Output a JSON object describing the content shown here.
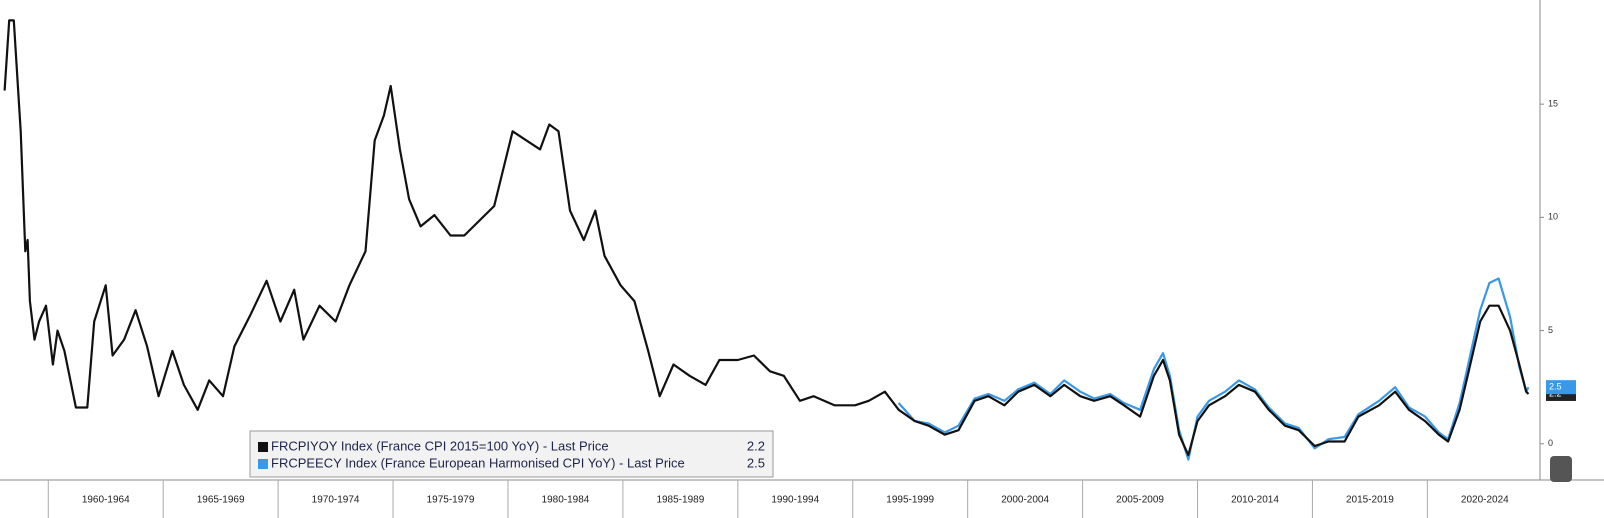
{
  "chart_data": {
    "type": "line",
    "x": [
      1958.1,
      1958.3,
      1958.5,
      1958.8,
      1959.0,
      1959.1,
      1959.2,
      1959.4,
      1959.6,
      1959.9,
      1960.2,
      1960.4,
      1960.7,
      1961.2,
      1961.7,
      1962.0,
      1962.5,
      1962.8,
      1963.3,
      1963.8,
      1964.3,
      1964.8,
      1965.4,
      1965.9,
      1966.5,
      1967.0,
      1967.6,
      1968.1,
      1968.8,
      1969.5,
      1970.1,
      1970.7,
      1971.1,
      1971.8,
      1972.5,
      1973.1,
      1973.8,
      1974.2,
      1974.6,
      1974.9,
      1975.3,
      1975.7,
      1976.2,
      1976.8,
      1977.5,
      1978.1,
      1978.8,
      1979.4,
      1980.2,
      1980.8,
      1981.4,
      1981.8,
      1982.2,
      1982.7,
      1983.3,
      1983.8,
      1984.2,
      1984.9,
      1985.5,
      1986.1,
      1986.6,
      1987.2,
      1987.9,
      1988.6,
      1989.2,
      1990.0,
      1990.7,
      1991.4,
      1992.0,
      1992.7,
      1993.3,
      1994.2,
      1995.1,
      1995.7,
      1996.4,
      1997.0,
      1997.7,
      1998.3,
      1999.0,
      1999.6,
      2000.3,
      2000.9,
      2001.6,
      2002.2,
      2002.9,
      2003.6,
      2004.2,
      2004.9,
      2005.5,
      2006.2,
      2006.8,
      2007.5,
      2008.1,
      2008.5,
      2008.8,
      2009.2,
      2009.6,
      2010.0,
      2010.5,
      2011.2,
      2011.8,
      2012.5,
      2013.1,
      2013.8,
      2014.4,
      2015.1,
      2015.7,
      2016.4,
      2017.0,
      2017.9,
      2018.6,
      2019.2,
      2019.9,
      2020.5,
      2020.9,
      2021.4,
      2021.8,
      2022.3,
      2022.7,
      2023.1,
      2023.6,
      2024.0,
      2024.3,
      2024.4
    ],
    "series": [
      {
        "name": "FRCPIYOY Index (France CPI 2015=100 YoY) - Last Price",
        "last_value": 2.2,
        "color": "#111111",
        "values": [
          15.6,
          18.7,
          18.7,
          13.8,
          8.5,
          9.0,
          6.3,
          4.6,
          5.4,
          6.1,
          3.5,
          5.0,
          4.1,
          1.6,
          1.6,
          5.4,
          7.0,
          3.9,
          4.6,
          5.9,
          4.3,
          2.1,
          4.1,
          2.6,
          1.5,
          2.8,
          2.1,
          4.3,
          5.7,
          7.2,
          5.4,
          6.8,
          4.6,
          6.1,
          5.4,
          7.0,
          8.5,
          13.4,
          14.5,
          15.8,
          13.0,
          10.8,
          9.6,
          10.1,
          9.2,
          9.2,
          9.9,
          10.5,
          13.8,
          13.4,
          13.0,
          14.1,
          13.8,
          10.3,
          9.0,
          10.3,
          8.3,
          7.0,
          6.3,
          4.1,
          2.1,
          3.5,
          3.0,
          2.6,
          3.7,
          3.7,
          3.9,
          3.2,
          3.0,
          1.9,
          2.1,
          1.7,
          1.7,
          1.9,
          2.3,
          1.5,
          1.0,
          0.8,
          0.4,
          0.6,
          1.9,
          2.1,
          1.7,
          2.3,
          2.6,
          2.1,
          2.6,
          2.1,
          1.9,
          2.1,
          1.7,
          1.2,
          3.0,
          3.7,
          2.8,
          0.4,
          -0.5,
          1.0,
          1.7,
          2.1,
          2.6,
          2.3,
          1.5,
          0.8,
          0.6,
          -0.1,
          0.1,
          0.1,
          1.2,
          1.7,
          2.3,
          1.5,
          1.0,
          0.4,
          0.1,
          1.5,
          3.2,
          5.4,
          6.1,
          6.1,
          5.0,
          3.5,
          2.3,
          2.2
        ]
      },
      {
        "name": "FRCPEECY Index (France European Harmonised CPI YoY) - Last Price",
        "last_value": 2.5,
        "color": "#3a98e8",
        "values": [
          null,
          null,
          null,
          null,
          null,
          null,
          null,
          null,
          null,
          null,
          null,
          null,
          null,
          null,
          null,
          null,
          null,
          null,
          null,
          null,
          null,
          null,
          null,
          null,
          null,
          null,
          null,
          null,
          null,
          null,
          null,
          null,
          null,
          null,
          null,
          null,
          null,
          null,
          null,
          null,
          null,
          null,
          null,
          null,
          null,
          null,
          null,
          null,
          null,
          null,
          null,
          null,
          null,
          null,
          null,
          null,
          null,
          null,
          null,
          null,
          null,
          null,
          null,
          null,
          null,
          null,
          null,
          null,
          null,
          null,
          null,
          null,
          null,
          null,
          null,
          1.8,
          1.0,
          0.9,
          0.5,
          0.8,
          2.0,
          2.2,
          1.9,
          2.4,
          2.7,
          2.2,
          2.8,
          2.3,
          2.0,
          2.2,
          1.8,
          1.5,
          3.3,
          4.0,
          3.0,
          0.6,
          -0.7,
          1.2,
          1.9,
          2.3,
          2.8,
          2.4,
          1.6,
          0.9,
          0.7,
          -0.2,
          0.2,
          0.3,
          1.3,
          1.9,
          2.5,
          1.6,
          1.2,
          0.5,
          0.2,
          1.8,
          3.6,
          5.9,
          7.1,
          7.3,
          5.6,
          3.4,
          2.3,
          2.5
        ]
      }
    ],
    "xlim": [
      1957.9,
      2024.9
    ],
    "xticks": [
      {
        "value": 1960,
        "label": "1960-1964"
      },
      {
        "value": 1965,
        "label": "1965-1969"
      },
      {
        "value": 1970,
        "label": "1970-1974"
      },
      {
        "value": 1975,
        "label": "1975-1979"
      },
      {
        "value": 1980,
        "label": "1980-1984"
      },
      {
        "value": 1985,
        "label": "1985-1989"
      },
      {
        "value": 1990,
        "label": "1990-1994"
      },
      {
        "value": 1995,
        "label": "1995-1999"
      },
      {
        "value": 2000,
        "label": "2000-2004"
      },
      {
        "value": 2005,
        "label": "2005-2009"
      },
      {
        "value": 2010,
        "label": "2010-2014"
      },
      {
        "value": 2015,
        "label": "2015-2019"
      },
      {
        "value": 2020,
        "label": "2020-2024"
      }
    ],
    "ylim": [
      -1.6,
      19.6
    ],
    "yticks": [
      0,
      5,
      10,
      15
    ],
    "y_axis_side": "right",
    "legend": "bottom-left"
  }
}
